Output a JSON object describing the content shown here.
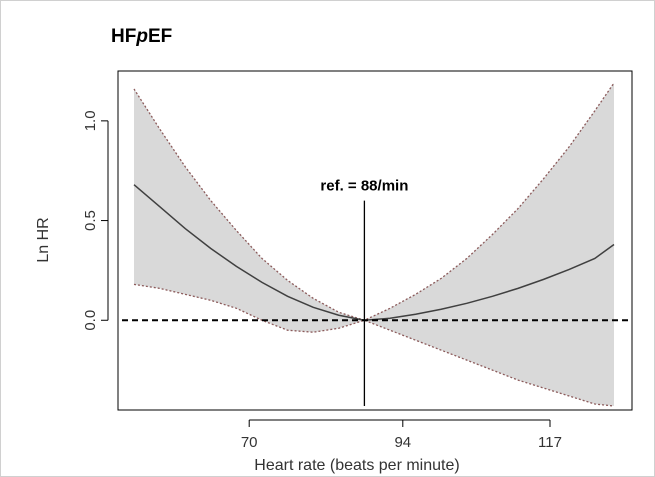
{
  "chart_data": {
    "type": "line",
    "title_prefix": "HF",
    "title_italic": "p",
    "title_suffix": "EF",
    "xlabel": "Heart rate (beats per minute)",
    "ylabel": "Ln HR",
    "xlim": [
      50,
      127
    ],
    "ylim": [
      -0.43,
      1.23
    ],
    "xticks": [
      70,
      94,
      117
    ],
    "yticks": [
      0.0,
      0.5,
      1.0
    ],
    "ytick_labels": [
      "0.0",
      "0.5",
      "1.0"
    ],
    "reference": {
      "x": 88,
      "label": "ref. = 88/min",
      "line_ymin": -0.43,
      "line_ymax": 0.6
    },
    "baseline": 0,
    "colors": {
      "band": "#d9d9d9",
      "curve": "#404040",
      "ci_line": "#8b5a5a",
      "axis": "#000000"
    },
    "series": [
      {
        "role": "estimate",
        "x": [
          52,
          56,
          60,
          64,
          68,
          72,
          76,
          80,
          84,
          88,
          92,
          96,
          100,
          104,
          108,
          112,
          116,
          120,
          124,
          127
        ],
        "y": [
          0.68,
          0.57,
          0.46,
          0.36,
          0.27,
          0.19,
          0.12,
          0.065,
          0.025,
          0.0,
          0.01,
          0.03,
          0.055,
          0.085,
          0.12,
          0.16,
          0.205,
          0.255,
          0.31,
          0.38
        ]
      },
      {
        "role": "upper_ci",
        "x": [
          52,
          56,
          60,
          64,
          68,
          72,
          76,
          80,
          84,
          88,
          92,
          96,
          100,
          104,
          108,
          112,
          116,
          120,
          124,
          127
        ],
        "y": [
          1.16,
          0.96,
          0.77,
          0.6,
          0.45,
          0.31,
          0.2,
          0.11,
          0.04,
          0.0,
          0.06,
          0.13,
          0.21,
          0.31,
          0.43,
          0.56,
          0.71,
          0.87,
          1.05,
          1.19
        ]
      },
      {
        "role": "lower_ci",
        "x": [
          52,
          56,
          60,
          64,
          68,
          72,
          76,
          80,
          84,
          88,
          92,
          96,
          100,
          104,
          108,
          112,
          116,
          120,
          124,
          127
        ],
        "y": [
          0.18,
          0.16,
          0.13,
          0.1,
          0.06,
          0.0,
          -0.05,
          -0.06,
          -0.04,
          0.0,
          -0.05,
          -0.1,
          -0.15,
          -0.2,
          -0.25,
          -0.3,
          -0.34,
          -0.38,
          -0.42,
          -0.43
        ]
      }
    ]
  }
}
